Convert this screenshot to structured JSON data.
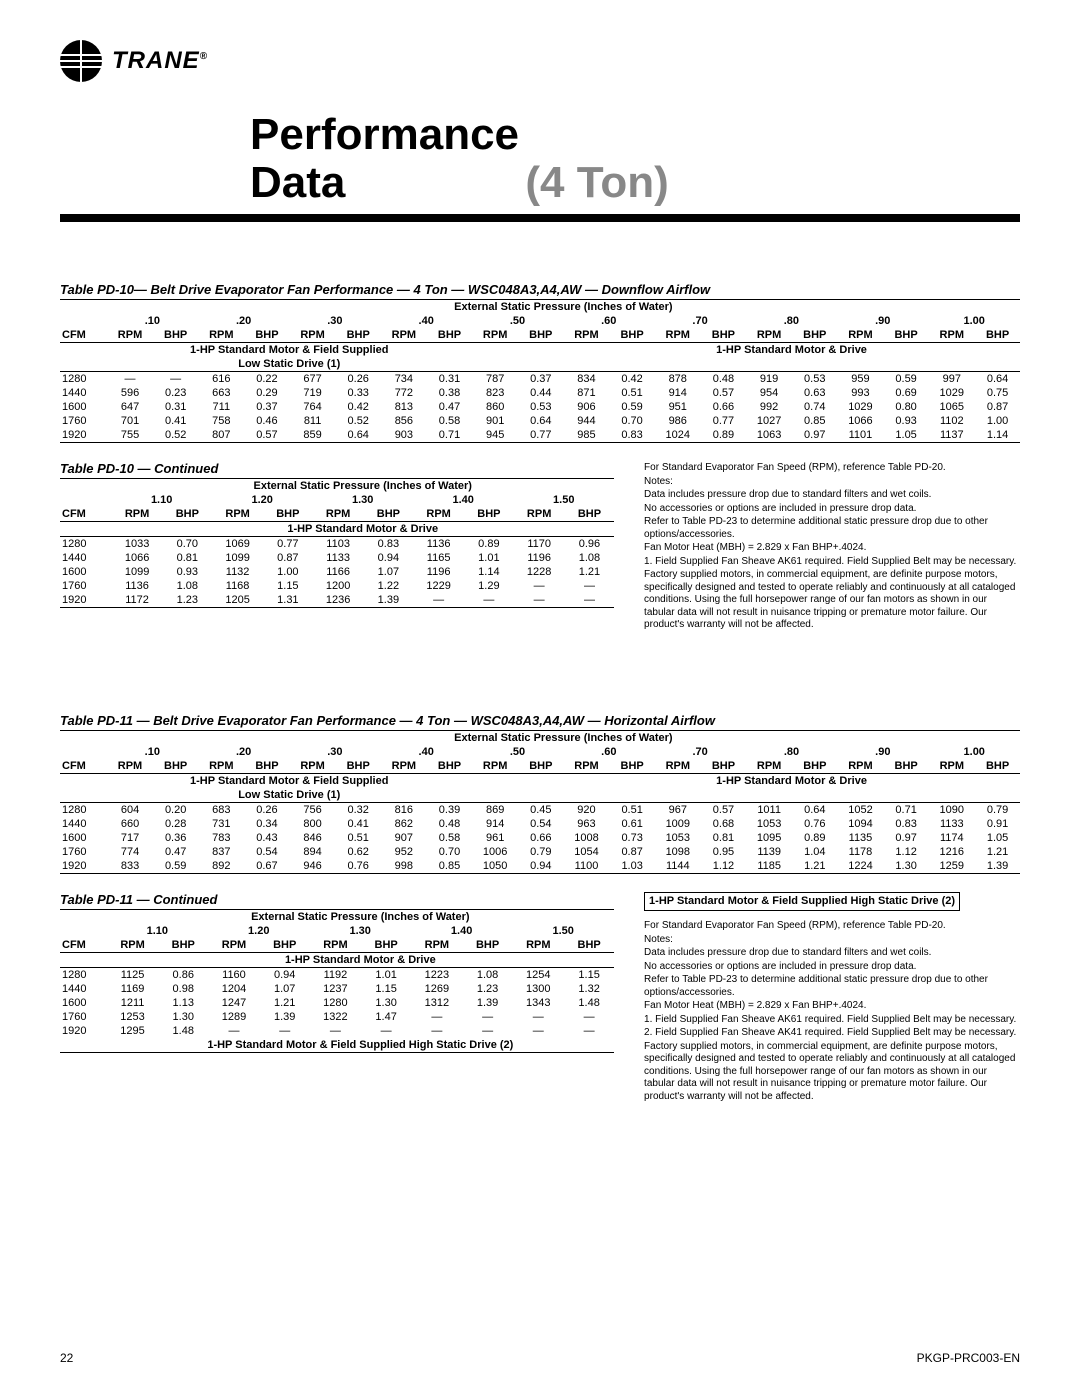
{
  "logo": {
    "brand": "TRANE",
    "reg": "®"
  },
  "title": {
    "line1": "Performance",
    "line2a": "Data",
    "line2b": "(4 Ton)"
  },
  "footer": {
    "page": "22",
    "doc": "PKGP-PRC003-EN"
  },
  "table1": {
    "title": "Table PD-10— Belt Drive Evaporator Fan Performance — 4 Ton — WSC048A3,A4,AW — Downflow Airflow",
    "esp_label": "External Static Pressure (Inches of Water)",
    "cfm": "CFM",
    "rpm": "RPM",
    "bhp": "BHP",
    "psi": [
      ".10",
      ".20",
      ".30",
      ".40",
      ".50",
      ".60",
      ".70",
      ".80",
      ".90",
      "1.00"
    ],
    "left_hdr": "1-HP Standard Motor & Field Supplied",
    "left_sub": "Low Static Drive (1)",
    "right_hdr": "1-HP Standard Motor & Drive",
    "cfms": [
      "1280",
      "1440",
      "1600",
      "1760",
      "1920"
    ],
    "rows": [
      [
        [
          "—",
          "—"
        ],
        [
          "616",
          "0.22"
        ],
        [
          "677",
          "0.26"
        ],
        [
          "734",
          "0.31"
        ],
        [
          "787",
          "0.37"
        ],
        [
          "834",
          "0.42"
        ],
        [
          "878",
          "0.48"
        ],
        [
          "919",
          "0.53"
        ],
        [
          "959",
          "0.59"
        ],
        [
          "997",
          "0.64"
        ]
      ],
      [
        [
          "596",
          "0.23"
        ],
        [
          "663",
          "0.29"
        ],
        [
          "719",
          "0.33"
        ],
        [
          "772",
          "0.38"
        ],
        [
          "823",
          "0.44"
        ],
        [
          "871",
          "0.51"
        ],
        [
          "914",
          "0.57"
        ],
        [
          "954",
          "0.63"
        ],
        [
          "993",
          "0.69"
        ],
        [
          "1029",
          "0.75"
        ]
      ],
      [
        [
          "647",
          "0.31"
        ],
        [
          "711",
          "0.37"
        ],
        [
          "764",
          "0.42"
        ],
        [
          "813",
          "0.47"
        ],
        [
          "860",
          "0.53"
        ],
        [
          "906",
          "0.59"
        ],
        [
          "951",
          "0.66"
        ],
        [
          "992",
          "0.74"
        ],
        [
          "1029",
          "0.80"
        ],
        [
          "1065",
          "0.87"
        ]
      ],
      [
        [
          "701",
          "0.41"
        ],
        [
          "758",
          "0.46"
        ],
        [
          "811",
          "0.52"
        ],
        [
          "856",
          "0.58"
        ],
        [
          "901",
          "0.64"
        ],
        [
          "944",
          "0.70"
        ],
        [
          "986",
          "0.77"
        ],
        [
          "1027",
          "0.85"
        ],
        [
          "1066",
          "0.93"
        ],
        [
          "1102",
          "1.00"
        ]
      ],
      [
        [
          "755",
          "0.52"
        ],
        [
          "807",
          "0.57"
        ],
        [
          "859",
          "0.64"
        ],
        [
          "903",
          "0.71"
        ],
        [
          "945",
          "0.77"
        ],
        [
          "985",
          "0.83"
        ],
        [
          "1024",
          "0.89"
        ],
        [
          "1063",
          "0.97"
        ],
        [
          "1101",
          "1.05"
        ],
        [
          "1137",
          "1.14"
        ]
      ]
    ]
  },
  "table1c": {
    "title": "Table PD-10 — Continued",
    "psi": [
      "1.10",
      "1.20",
      "1.30",
      "1.40",
      "1.50"
    ],
    "sub": "1-HP Standard Motor & Drive",
    "rows": [
      [
        [
          "1033",
          "0.70"
        ],
        [
          "1069",
          "0.77"
        ],
        [
          "1103",
          "0.83"
        ],
        [
          "1136",
          "0.89"
        ],
        [
          "1170",
          "0.96"
        ]
      ],
      [
        [
          "1066",
          "0.81"
        ],
        [
          "1099",
          "0.87"
        ],
        [
          "1133",
          "0.94"
        ],
        [
          "1165",
          "1.01"
        ],
        [
          "1196",
          "1.08"
        ]
      ],
      [
        [
          "1099",
          "0.93"
        ],
        [
          "1132",
          "1.00"
        ],
        [
          "1166",
          "1.07"
        ],
        [
          "1196",
          "1.14"
        ],
        [
          "1228",
          "1.21"
        ]
      ],
      [
        [
          "1136",
          "1.08"
        ],
        [
          "1168",
          "1.15"
        ],
        [
          "1200",
          "1.22"
        ],
        [
          "1229",
          "1.29"
        ],
        [
          "—",
          "—"
        ]
      ],
      [
        [
          "1172",
          "1.23"
        ],
        [
          "1205",
          "1.31"
        ],
        [
          "1236",
          "1.39"
        ],
        [
          "—",
          "—"
        ],
        [
          "—",
          "—"
        ]
      ]
    ]
  },
  "notes1": {
    "ref": "For Standard Evaporator Fan Speed (RPM), reference Table PD-20.",
    "hdr": "Notes:",
    "n1": "Data includes pressure drop due to standard filters and wet coils.",
    "n2": "No accessories or options are included in pressure drop data.",
    "n3": "Refer to Table PD-23 to determine additional static pressure drop due to other options/accessories.",
    "n4": "Fan Motor Heat (MBH) = 2.829 x Fan BHP+.4024.",
    "n5": "1. Field Supplied Fan Sheave AK61 required. Field Supplied Belt may be necessary.",
    "n6": "Factory supplied motors, in commercial equipment, are definite purpose motors, specifically designed and tested to operate reliably and continuously at all cataloged conditions. Using the full horsepower range of our fan motors as shown in our tabular data will not result in nuisance tripping or premature motor failure. Our product's warranty will not be affected."
  },
  "table2": {
    "title": "Table PD-11 — Belt Drive Evaporator Fan Performance — 4 Ton — WSC048A3,A4,AW — Horizontal Airflow",
    "rows": [
      [
        [
          "604",
          "0.20"
        ],
        [
          "683",
          "0.26"
        ],
        [
          "756",
          "0.32"
        ],
        [
          "816",
          "0.39"
        ],
        [
          "869",
          "0.45"
        ],
        [
          "920",
          "0.51"
        ],
        [
          "967",
          "0.57"
        ],
        [
          "1011",
          "0.64"
        ],
        [
          "1052",
          "0.71"
        ],
        [
          "1090",
          "0.79"
        ]
      ],
      [
        [
          "660",
          "0.28"
        ],
        [
          "731",
          "0.34"
        ],
        [
          "800",
          "0.41"
        ],
        [
          "862",
          "0.48"
        ],
        [
          "914",
          "0.54"
        ],
        [
          "963",
          "0.61"
        ],
        [
          "1009",
          "0.68"
        ],
        [
          "1053",
          "0.76"
        ],
        [
          "1094",
          "0.83"
        ],
        [
          "1133",
          "0.91"
        ]
      ],
      [
        [
          "717",
          "0.36"
        ],
        [
          "783",
          "0.43"
        ],
        [
          "846",
          "0.51"
        ],
        [
          "907",
          "0.58"
        ],
        [
          "961",
          "0.66"
        ],
        [
          "1008",
          "0.73"
        ],
        [
          "1053",
          "0.81"
        ],
        [
          "1095",
          "0.89"
        ],
        [
          "1135",
          "0.97"
        ],
        [
          "1174",
          "1.05"
        ]
      ],
      [
        [
          "774",
          "0.47"
        ],
        [
          "837",
          "0.54"
        ],
        [
          "894",
          "0.62"
        ],
        [
          "952",
          "0.70"
        ],
        [
          "1006",
          "0.79"
        ],
        [
          "1054",
          "0.87"
        ],
        [
          "1098",
          "0.95"
        ],
        [
          "1139",
          "1.04"
        ],
        [
          "1178",
          "1.12"
        ],
        [
          "1216",
          "1.21"
        ]
      ],
      [
        [
          "833",
          "0.59"
        ],
        [
          "892",
          "0.67"
        ],
        [
          "946",
          "0.76"
        ],
        [
          "998",
          "0.85"
        ],
        [
          "1050",
          "0.94"
        ],
        [
          "1100",
          "1.03"
        ],
        [
          "1144",
          "1.12"
        ],
        [
          "1185",
          "1.21"
        ],
        [
          "1224",
          "1.30"
        ],
        [
          "1259",
          "1.39"
        ]
      ]
    ]
  },
  "table2c": {
    "title": "Table PD-11 — Continued",
    "sub2": "1-HP Standard Motor & Field Supplied High Static Drive (2)",
    "rows": [
      [
        [
          "1125",
          "0.86"
        ],
        [
          "1160",
          "0.94"
        ],
        [
          "1192",
          "1.01"
        ],
        [
          "1223",
          "1.08"
        ],
        [
          "1254",
          "1.15"
        ]
      ],
      [
        [
          "1169",
          "0.98"
        ],
        [
          "1204",
          "1.07"
        ],
        [
          "1237",
          "1.15"
        ],
        [
          "1269",
          "1.23"
        ],
        [
          "1300",
          "1.32"
        ]
      ],
      [
        [
          "1211",
          "1.13"
        ],
        [
          "1247",
          "1.21"
        ],
        [
          "1280",
          "1.30"
        ],
        [
          "1312",
          "1.39"
        ],
        [
          "1343",
          "1.48"
        ]
      ],
      [
        [
          "1253",
          "1.30"
        ],
        [
          "1289",
          "1.39"
        ],
        [
          "1322",
          "1.47"
        ],
        [
          "—",
          "—"
        ],
        [
          "—",
          "—"
        ]
      ],
      [
        [
          "1295",
          "1.48"
        ],
        [
          "—",
          "—"
        ],
        [
          "—",
          "—"
        ],
        [
          "—",
          "—"
        ],
        [
          "—",
          "—"
        ]
      ]
    ]
  },
  "callout2": "1-HP Standard Motor & Field Supplied High Static Drive (2)",
  "notes2": {
    "n7": "2. Field Supplied Fan Sheave AK41 required. Field Supplied Belt may be necessary."
  }
}
